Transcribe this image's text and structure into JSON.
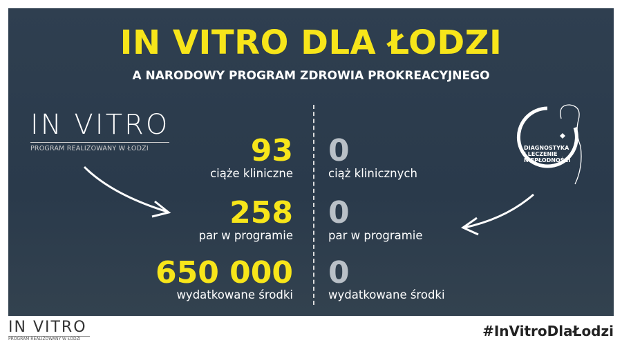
{
  "title": "IN VITRO DLA ŁODZI",
  "subtitle": "A NARODOWY PROGRAM ZDROWIA PROKREACYJNEGO",
  "left_logo": {
    "main": "IN VITRO",
    "sub": "PROGRAM REALIZOWANY W ŁODZI"
  },
  "right_logo": {
    "line1": "DIAGNOSTYKA",
    "line2": "I LECZENIE",
    "line3": "NIEPŁODNOŚCI"
  },
  "left_stats": [
    {
      "value": "93",
      "label": "ciąże kliniczne"
    },
    {
      "value": "258",
      "label": "par w programie"
    },
    {
      "value": "650 000",
      "label": "wydatkowane środki"
    }
  ],
  "right_stats": [
    {
      "value": "0",
      "label": "ciąż klinicznych"
    },
    {
      "value": "0",
      "label": "par w programie"
    },
    {
      "value": "0",
      "label": "wydatkowane środki"
    }
  ],
  "footer": {
    "logo_main": "IN VITRO",
    "logo_sub": "PROGRAM REALIZOWANY W ŁODZI",
    "hashtag": "#InVitroDlaŁodzi"
  },
  "colors": {
    "accent": "#f7e51a",
    "panel": "#2b3a4b"
  }
}
